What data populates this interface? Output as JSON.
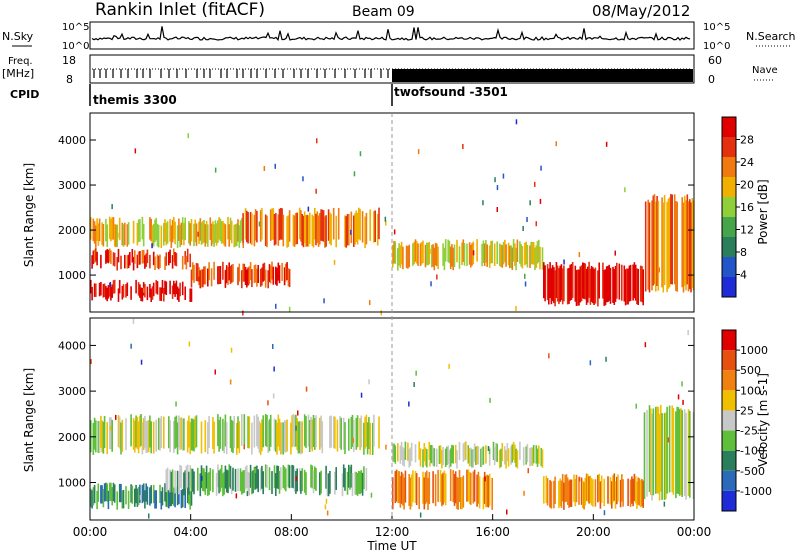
{
  "header": {
    "station": "Rankin Inlet (fitACF)",
    "beam": "Beam 09",
    "date": "08/May/2012"
  },
  "sky_panel": {
    "left_label": "N.Sky",
    "right_label": "N.Search",
    "ticks": [
      "10^5",
      "10^0"
    ],
    "right_ticks": [
      "10^5",
      "10^0"
    ]
  },
  "freq_panel": {
    "left_label_1": "Freq.",
    "left_label_2": "[MHz]",
    "right_label": "Nave",
    "left_ticks": [
      "18",
      "8"
    ],
    "right_ticks": [
      "60",
      "0"
    ]
  },
  "cpid": {
    "label": "CPID",
    "modes": [
      {
        "name": "themis 3300",
        "start_hour": 0
      },
      {
        "name": "twofsound -3501",
        "start_hour": 12
      }
    ]
  },
  "chart_data": [
    {
      "type": "heatmap",
      "name": "power",
      "ylabel": "Slant Range [km]",
      "ylim": [
        180,
        4600
      ],
      "yticks": [
        "1000",
        "2000",
        "3000",
        "4000"
      ],
      "colorbar_label": "Power [dB]",
      "colorbar_ticks": [
        "28",
        "24",
        "20",
        "16",
        "12",
        "8",
        "4"
      ],
      "colors": [
        "#1e2bd6",
        "#2255c8",
        "#2a7e5c",
        "#46a54a",
        "#8fcf3a",
        "#f0b000",
        "#f07a10",
        "#e53010",
        "#e00000"
      ],
      "bands": [
        {
          "hours": [
            0,
            4
          ],
          "range_km": [
            500,
            800
          ],
          "level": 8
        },
        {
          "hours": [
            0,
            4
          ],
          "range_km": [
            1200,
            1500
          ],
          "level": 7
        },
        {
          "hours": [
            0,
            6
          ],
          "range_km": [
            1700,
            2200
          ],
          "level": 5
        },
        {
          "hours": [
            4,
            8
          ],
          "range_km": [
            800,
            1200
          ],
          "level": 7
        },
        {
          "hours": [
            6,
            11.5
          ],
          "range_km": [
            1700,
            2400
          ],
          "level": 6
        },
        {
          "hours": [
            12,
            18
          ],
          "range_km": [
            1200,
            1700
          ],
          "level": 5
        },
        {
          "hours": [
            18,
            22
          ],
          "range_km": [
            400,
            1200
          ],
          "level": 8
        },
        {
          "hours": [
            22,
            24
          ],
          "range_km": [
            700,
            2700
          ],
          "level": 6
        }
      ]
    },
    {
      "type": "heatmap",
      "name": "velocity",
      "xlabel": "Time UT",
      "ylabel": "Slant Range [km]",
      "ylim": [
        180,
        4600
      ],
      "xlim": [
        0,
        24
      ],
      "xticks": [
        "00:00",
        "04:00",
        "08:00",
        "12:00",
        "16:00",
        "20:00",
        "00:00"
      ],
      "yticks": [
        "1000",
        "2000",
        "3000",
        "4000"
      ],
      "colorbar_label": "Velocity [m s-1]",
      "colorbar_ticks": [
        "1000",
        "500",
        "100",
        "25",
        "-25",
        "-100",
        "-500",
        "-1000"
      ],
      "colors": [
        "#1e2bd6",
        "#2a6ab8",
        "#2a7e5c",
        "#5fbf3a",
        "#c8c8c8",
        "#f0c000",
        "#f08010",
        "#e85010",
        "#e00000"
      ],
      "bands": [
        {
          "hours": [
            0,
            4
          ],
          "range_km": [
            500,
            900
          ],
          "level": 2
        },
        {
          "hours": [
            0,
            11.5
          ],
          "range_km": [
            1700,
            2400
          ],
          "level": 4
        },
        {
          "hours": [
            3,
            11
          ],
          "range_km": [
            800,
            1300
          ],
          "level": 3
        },
        {
          "hours": [
            12,
            16
          ],
          "range_km": [
            500,
            1200
          ],
          "level": 6
        },
        {
          "hours": [
            12,
            18
          ],
          "range_km": [
            1400,
            1800
          ],
          "level": 4
        },
        {
          "hours": [
            18,
            22
          ],
          "range_km": [
            500,
            1100
          ],
          "level": 6
        },
        {
          "hours": [
            22,
            24
          ],
          "range_km": [
            700,
            2600
          ],
          "level": 4
        }
      ]
    }
  ]
}
